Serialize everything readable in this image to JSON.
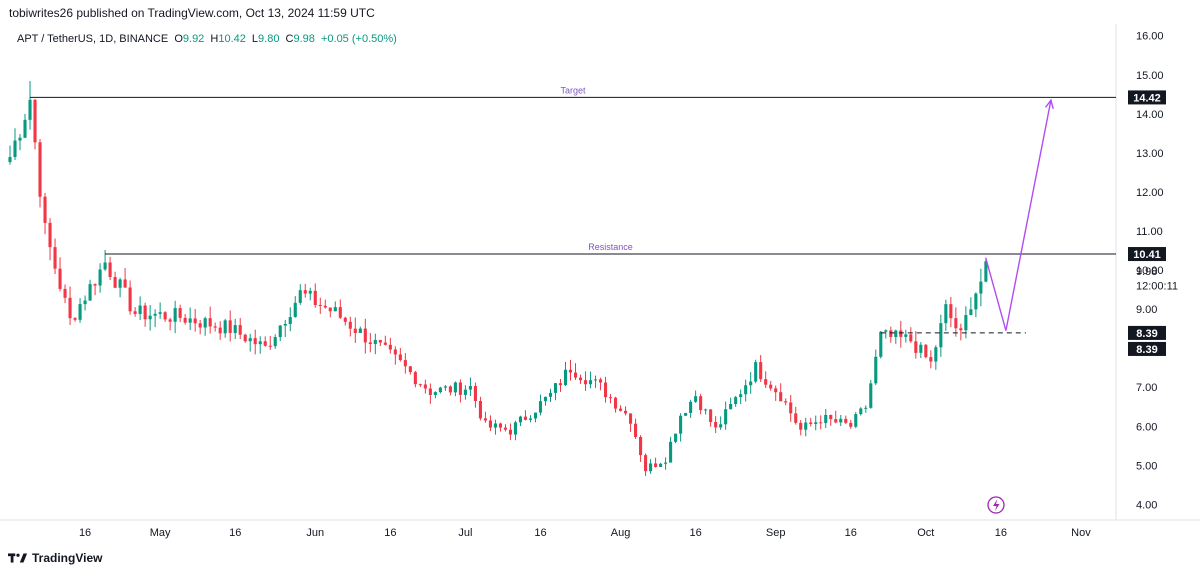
{
  "publisher": "tobiwrites26 published on TradingView.com, Oct 13, 2024 11:59 UTC",
  "legend": {
    "symbol": "APT / TetherUS, 1D, BINANCE",
    "o_label": "O",
    "o": "9.92",
    "h_label": "H",
    "h": "10.42",
    "l_label": "L",
    "l": "9.80",
    "c_label": "C",
    "c": "9.98",
    "change": "+0.05 (+0.50%)"
  },
  "footer": {
    "brand": "TradingView"
  },
  "colors": {
    "up": "#089981",
    "down": "#f23645",
    "projection": "#b24bf3",
    "line": "#131722"
  },
  "chart_data": {
    "type": "candlestick",
    "ylim": [
      3.6,
      16.3
    ],
    "y_ticks": [
      "16.00",
      "15.00",
      "14.00",
      "13.00",
      "12.00",
      "11.00",
      "10.00",
      "9.00",
      "7.00",
      "6.00",
      "5.00",
      "4.00"
    ],
    "x_ticks": [
      {
        "label": "16",
        "date": "2024-04-16"
      },
      {
        "label": "May",
        "date": "2024-05-01"
      },
      {
        "label": "16",
        "date": "2024-05-16"
      },
      {
        "label": "Jun",
        "date": "2024-06-01"
      },
      {
        "label": "16",
        "date": "2024-06-16"
      },
      {
        "label": "Jul",
        "date": "2024-07-01"
      },
      {
        "label": "16",
        "date": "2024-07-16"
      },
      {
        "label": "Aug",
        "date": "2024-08-01"
      },
      {
        "label": "16",
        "date": "2024-08-16"
      },
      {
        "label": "Sep",
        "date": "2024-09-01"
      },
      {
        "label": "16",
        "date": "2024-09-16"
      },
      {
        "label": "Oct",
        "date": "2024-10-01"
      },
      {
        "label": "16",
        "date": "2024-10-16"
      },
      {
        "label": "Nov",
        "date": "2024-11-01"
      }
    ],
    "x_start": "2024-04-01",
    "x_end": "2024-11-08",
    "key_points": [
      {
        "date": "2024-04-01",
        "price": 12.9
      },
      {
        "date": "2024-04-05",
        "price": 14.4
      },
      {
        "date": "2024-04-08",
        "price": 11.0
      },
      {
        "date": "2024-04-13",
        "price": 8.7
      },
      {
        "date": "2024-04-20",
        "price": 10.2
      },
      {
        "date": "2024-04-26",
        "price": 8.9
      },
      {
        "date": "2024-05-05",
        "price": 8.8
      },
      {
        "date": "2024-05-15",
        "price": 8.5
      },
      {
        "date": "2024-05-22",
        "price": 8.0
      },
      {
        "date": "2024-05-29",
        "price": 9.4
      },
      {
        "date": "2024-06-05",
        "price": 8.9
      },
      {
        "date": "2024-06-12",
        "price": 8.2
      },
      {
        "date": "2024-06-18",
        "price": 7.6
      },
      {
        "date": "2024-06-24",
        "price": 6.9
      },
      {
        "date": "2024-07-02",
        "price": 7.0
      },
      {
        "date": "2024-07-05",
        "price": 6.0
      },
      {
        "date": "2024-07-10",
        "price": 5.9
      },
      {
        "date": "2024-07-18",
        "price": 6.8
      },
      {
        "date": "2024-07-22",
        "price": 7.5
      },
      {
        "date": "2024-07-28",
        "price": 7.0
      },
      {
        "date": "2024-08-03",
        "price": 6.2
      },
      {
        "date": "2024-08-06",
        "price": 4.9
      },
      {
        "date": "2024-08-10",
        "price": 5.2
      },
      {
        "date": "2024-08-13",
        "price": 6.3
      },
      {
        "date": "2024-08-16",
        "price": 6.8
      },
      {
        "date": "2024-08-20",
        "price": 5.9
      },
      {
        "date": "2024-08-24",
        "price": 6.7
      },
      {
        "date": "2024-08-28",
        "price": 7.5
      },
      {
        "date": "2024-09-02",
        "price": 6.8
      },
      {
        "date": "2024-09-06",
        "price": 5.9
      },
      {
        "date": "2024-09-10",
        "price": 6.2
      },
      {
        "date": "2024-09-16",
        "price": 6.0
      },
      {
        "date": "2024-09-19",
        "price": 6.5
      },
      {
        "date": "2024-09-22",
        "price": 8.3
      },
      {
        "date": "2024-09-28",
        "price": 8.2
      },
      {
        "date": "2024-10-02",
        "price": 7.6
      },
      {
        "date": "2024-10-05",
        "price": 9.0
      },
      {
        "date": "2024-10-08",
        "price": 8.3
      },
      {
        "date": "2024-10-10",
        "price": 9.2
      },
      {
        "date": "2024-10-13",
        "price": 9.98
      }
    ],
    "horizontal_lines": [
      {
        "name": "Target",
        "price": 14.42,
        "from": "2024-04-05",
        "style": "solid"
      },
      {
        "name": "Resistance",
        "price": 10.41,
        "from": "2024-04-20",
        "style": "solid"
      },
      {
        "name": "",
        "price": 8.39,
        "from": "2024-09-22",
        "to": "2024-10-21",
        "style": "dashed"
      }
    ],
    "projection": [
      {
        "date": "2024-10-13",
        "price": 10.3
      },
      {
        "date": "2024-10-17",
        "price": 8.45
      },
      {
        "date": "2024-10-26",
        "price": 14.35
      }
    ],
    "price_labels": [
      {
        "text": "14.42",
        "price": 14.42,
        "style": "dark"
      },
      {
        "text": "10.41",
        "price": 10.41,
        "style": "dark"
      },
      {
        "text": "9.98",
        "price": 9.98,
        "style": "plain"
      },
      {
        "text": "12:00:11",
        "price": 9.6,
        "style": "plain"
      },
      {
        "text": "8.39",
        "price": 8.39,
        "style": "dark"
      },
      {
        "text": "8.39",
        "price": 7.98,
        "style": "dark"
      }
    ]
  }
}
